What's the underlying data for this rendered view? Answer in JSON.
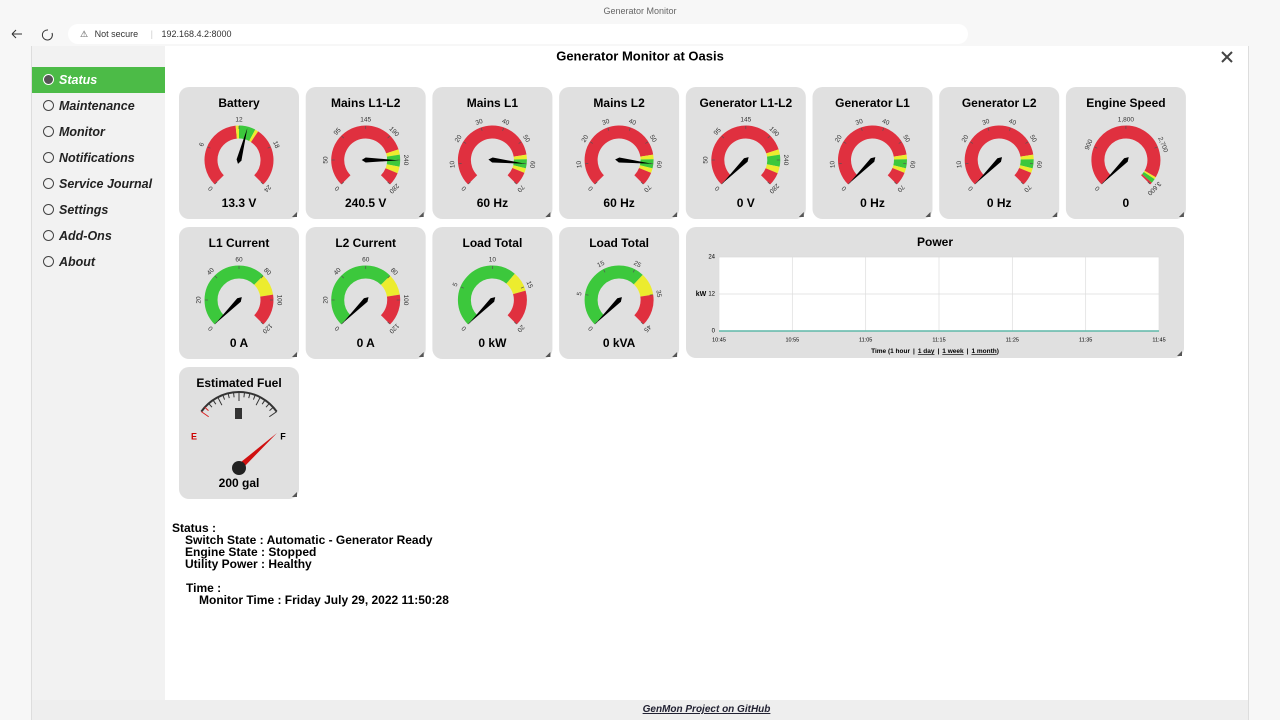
{
  "browser": {
    "tab_title": "Generator Monitor",
    "security": "Not secure",
    "url": "192.168.4.2:8000"
  },
  "page": {
    "title": "Generator Monitor at Oasis",
    "nav": [
      "Status",
      "Maintenance",
      "Monitor",
      "Notifications",
      "Service Journal",
      "Settings",
      "Add-Ons",
      "About"
    ]
  },
  "gauges": [
    {
      "title": "Battery",
      "ticks": [
        0,
        6,
        12,
        18,
        24
      ],
      "zones": [
        {
          "from": 0,
          "to": 11.5,
          "color": "#e0303f"
        },
        {
          "from": 11.5,
          "to": 12,
          "color": "#ecec2e"
        },
        {
          "from": 12,
          "to": 14.5,
          "color": "#3cc83c"
        },
        {
          "from": 14.5,
          "to": 15,
          "color": "#ecec2e"
        },
        {
          "from": 15,
          "to": 24,
          "color": "#e0303f"
        }
      ],
      "value": 13.3,
      "value_label": "13.3 V"
    },
    {
      "title": "Mains L1-L2",
      "ticks": [
        0,
        50,
        95,
        145,
        190,
        240,
        280
      ],
      "zones": [
        {
          "from": 0,
          "to": 220,
          "color": "#e0303f"
        },
        {
          "from": 220,
          "to": 230,
          "color": "#ecec2e"
        },
        {
          "from": 230,
          "to": 250,
          "color": "#3cc83c"
        },
        {
          "from": 250,
          "to": 260,
          "color": "#ecec2e"
        },
        {
          "from": 260,
          "to": 280,
          "color": "#e0303f"
        }
      ],
      "value": 240.5,
      "value_label": "240.5 V"
    },
    {
      "title": "Mains L1",
      "ticks": [
        0,
        10,
        20,
        30,
        40,
        50,
        60,
        70
      ],
      "zones": [
        {
          "from": 0,
          "to": 56,
          "color": "#e0303f"
        },
        {
          "from": 56,
          "to": 58,
          "color": "#ecec2e"
        },
        {
          "from": 58,
          "to": 62,
          "color": "#3cc83c"
        },
        {
          "from": 62,
          "to": 64,
          "color": "#ecec2e"
        },
        {
          "from": 64,
          "to": 70,
          "color": "#e0303f"
        }
      ],
      "value": 60,
      "value_label": "60 Hz"
    },
    {
      "title": "Mains L2",
      "ticks": [
        0,
        10,
        20,
        30,
        40,
        50,
        60,
        70
      ],
      "zones": [
        {
          "from": 0,
          "to": 56,
          "color": "#e0303f"
        },
        {
          "from": 56,
          "to": 58,
          "color": "#ecec2e"
        },
        {
          "from": 58,
          "to": 62,
          "color": "#3cc83c"
        },
        {
          "from": 62,
          "to": 64,
          "color": "#ecec2e"
        },
        {
          "from": 64,
          "to": 70,
          "color": "#e0303f"
        }
      ],
      "value": 60,
      "value_label": "60 Hz"
    },
    {
      "title": "Generator L1-L2",
      "ticks": [
        0,
        50,
        95,
        145,
        190,
        240,
        280
      ],
      "zones": [
        {
          "from": 0,
          "to": 220,
          "color": "#e0303f"
        },
        {
          "from": 220,
          "to": 230,
          "color": "#ecec2e"
        },
        {
          "from": 230,
          "to": 250,
          "color": "#3cc83c"
        },
        {
          "from": 250,
          "to": 260,
          "color": "#ecec2e"
        },
        {
          "from": 260,
          "to": 280,
          "color": "#e0303f"
        }
      ],
      "value": 0,
      "value_label": "0 V"
    },
    {
      "title": "Generator L1",
      "ticks": [
        0,
        10,
        20,
        30,
        40,
        50,
        60,
        70
      ],
      "zones": [
        {
          "from": 0,
          "to": 56,
          "color": "#e0303f"
        },
        {
          "from": 56,
          "to": 58,
          "color": "#ecec2e"
        },
        {
          "from": 58,
          "to": 62,
          "color": "#3cc83c"
        },
        {
          "from": 62,
          "to": 64,
          "color": "#ecec2e"
        },
        {
          "from": 64,
          "to": 70,
          "color": "#e0303f"
        }
      ],
      "value": 0,
      "value_label": "0 Hz"
    },
    {
      "title": "Generator L2",
      "ticks": [
        0,
        10,
        20,
        30,
        40,
        50,
        60,
        70
      ],
      "zones": [
        {
          "from": 0,
          "to": 56,
          "color": "#e0303f"
        },
        {
          "from": 56,
          "to": 58,
          "color": "#ecec2e"
        },
        {
          "from": 58,
          "to": 62,
          "color": "#3cc83c"
        },
        {
          "from": 62,
          "to": 64,
          "color": "#ecec2e"
        },
        {
          "from": 64,
          "to": 70,
          "color": "#e0303f"
        }
      ],
      "value": 0,
      "value_label": "0 Hz"
    },
    {
      "title": "Engine Speed",
      "ticks": [
        0,
        900,
        {
          "value": 1800,
          "label": "1,800"
        },
        {
          "value": 2700,
          "label": "2,700"
        },
        {
          "value": 3600,
          "label": "3,600"
        }
      ],
      "zones": [
        {
          "from": 0,
          "to": 3400,
          "color": "#e0303f"
        },
        {
          "from": 3400,
          "to": 3450,
          "color": "#ecec2e"
        },
        {
          "from": 3450,
          "to": 3550,
          "color": "#3cc83c"
        },
        {
          "from": 3550,
          "to": 3600,
          "color": "#e0303f"
        }
      ],
      "value": 0,
      "value_label": "0"
    },
    {
      "title": "L1 Current",
      "ticks": [
        0,
        20,
        40,
        60,
        80,
        100,
        120
      ],
      "zones": [
        {
          "from": 0,
          "to": 80,
          "color": "#3cc83c"
        },
        {
          "from": 80,
          "to": 96,
          "color": "#ecec2e"
        },
        {
          "from": 96,
          "to": 120,
          "color": "#e0303f"
        }
      ],
      "value": 0,
      "value_label": "0 A"
    },
    {
      "title": "L2 Current",
      "ticks": [
        0,
        20,
        40,
        60,
        80,
        100,
        120
      ],
      "zones": [
        {
          "from": 0,
          "to": 80,
          "color": "#3cc83c"
        },
        {
          "from": 80,
          "to": 96,
          "color": "#ecec2e"
        },
        {
          "from": 96,
          "to": 120,
          "color": "#e0303f"
        }
      ],
      "value": 0,
      "value_label": "0 A"
    },
    {
      "title": "Load Total",
      "ticks": [
        0,
        5,
        10,
        15,
        20
      ],
      "zones": [
        {
          "from": 0,
          "to": 13,
          "color": "#3cc83c"
        },
        {
          "from": 13,
          "to": 15.5,
          "color": "#ecec2e"
        },
        {
          "from": 15.5,
          "to": 20,
          "color": "#e0303f"
        }
      ],
      "value": 0,
      "value_label": "0 kW"
    },
    {
      "title": "Load Total",
      "ticks": [
        0,
        5,
        15,
        25,
        35,
        45
      ],
      "zones": [
        {
          "from": 0,
          "to": 28,
          "color": "#3cc83c"
        },
        {
          "from": 28,
          "to": 35,
          "color": "#ecec2e"
        },
        {
          "from": 35,
          "to": 45,
          "color": "#e0303f"
        }
      ],
      "value": 0,
      "value_label": "0 kVA"
    }
  ],
  "power_chart": {
    "type": "line",
    "title": "Power",
    "y_label": "kW",
    "categories": [
      "10:45",
      "10:55",
      "11:05",
      "11:15",
      "11:25",
      "11:35",
      "11:45"
    ],
    "values": [
      0,
      0,
      0,
      0,
      0,
      0,
      0
    ],
    "color": "#5fb7a8",
    "ylim": [
      0,
      24
    ],
    "yticks": [
      0,
      12,
      24
    ],
    "grid": true,
    "range_parts": [
      "Time (1 hour",
      "|",
      "1 day",
      "|",
      "1 week",
      "|",
      "1 month",
      ")"
    ]
  },
  "fuel": {
    "title": "Estimated Fuel",
    "empty_label": "E",
    "full_label": "F",
    "reading": "200 gal"
  },
  "status": {
    "heading": "Status :",
    "lines": [
      "Switch State : Automatic - Generator Ready",
      "Engine State : Stopped",
      "Utility Power : Healthy"
    ],
    "time_heading": "Time :",
    "time_lines": [
      "Monitor Time : Friday July 29, 2022 11:50:28"
    ]
  },
  "footer": {
    "link": "GenMon Project on GitHub"
  }
}
